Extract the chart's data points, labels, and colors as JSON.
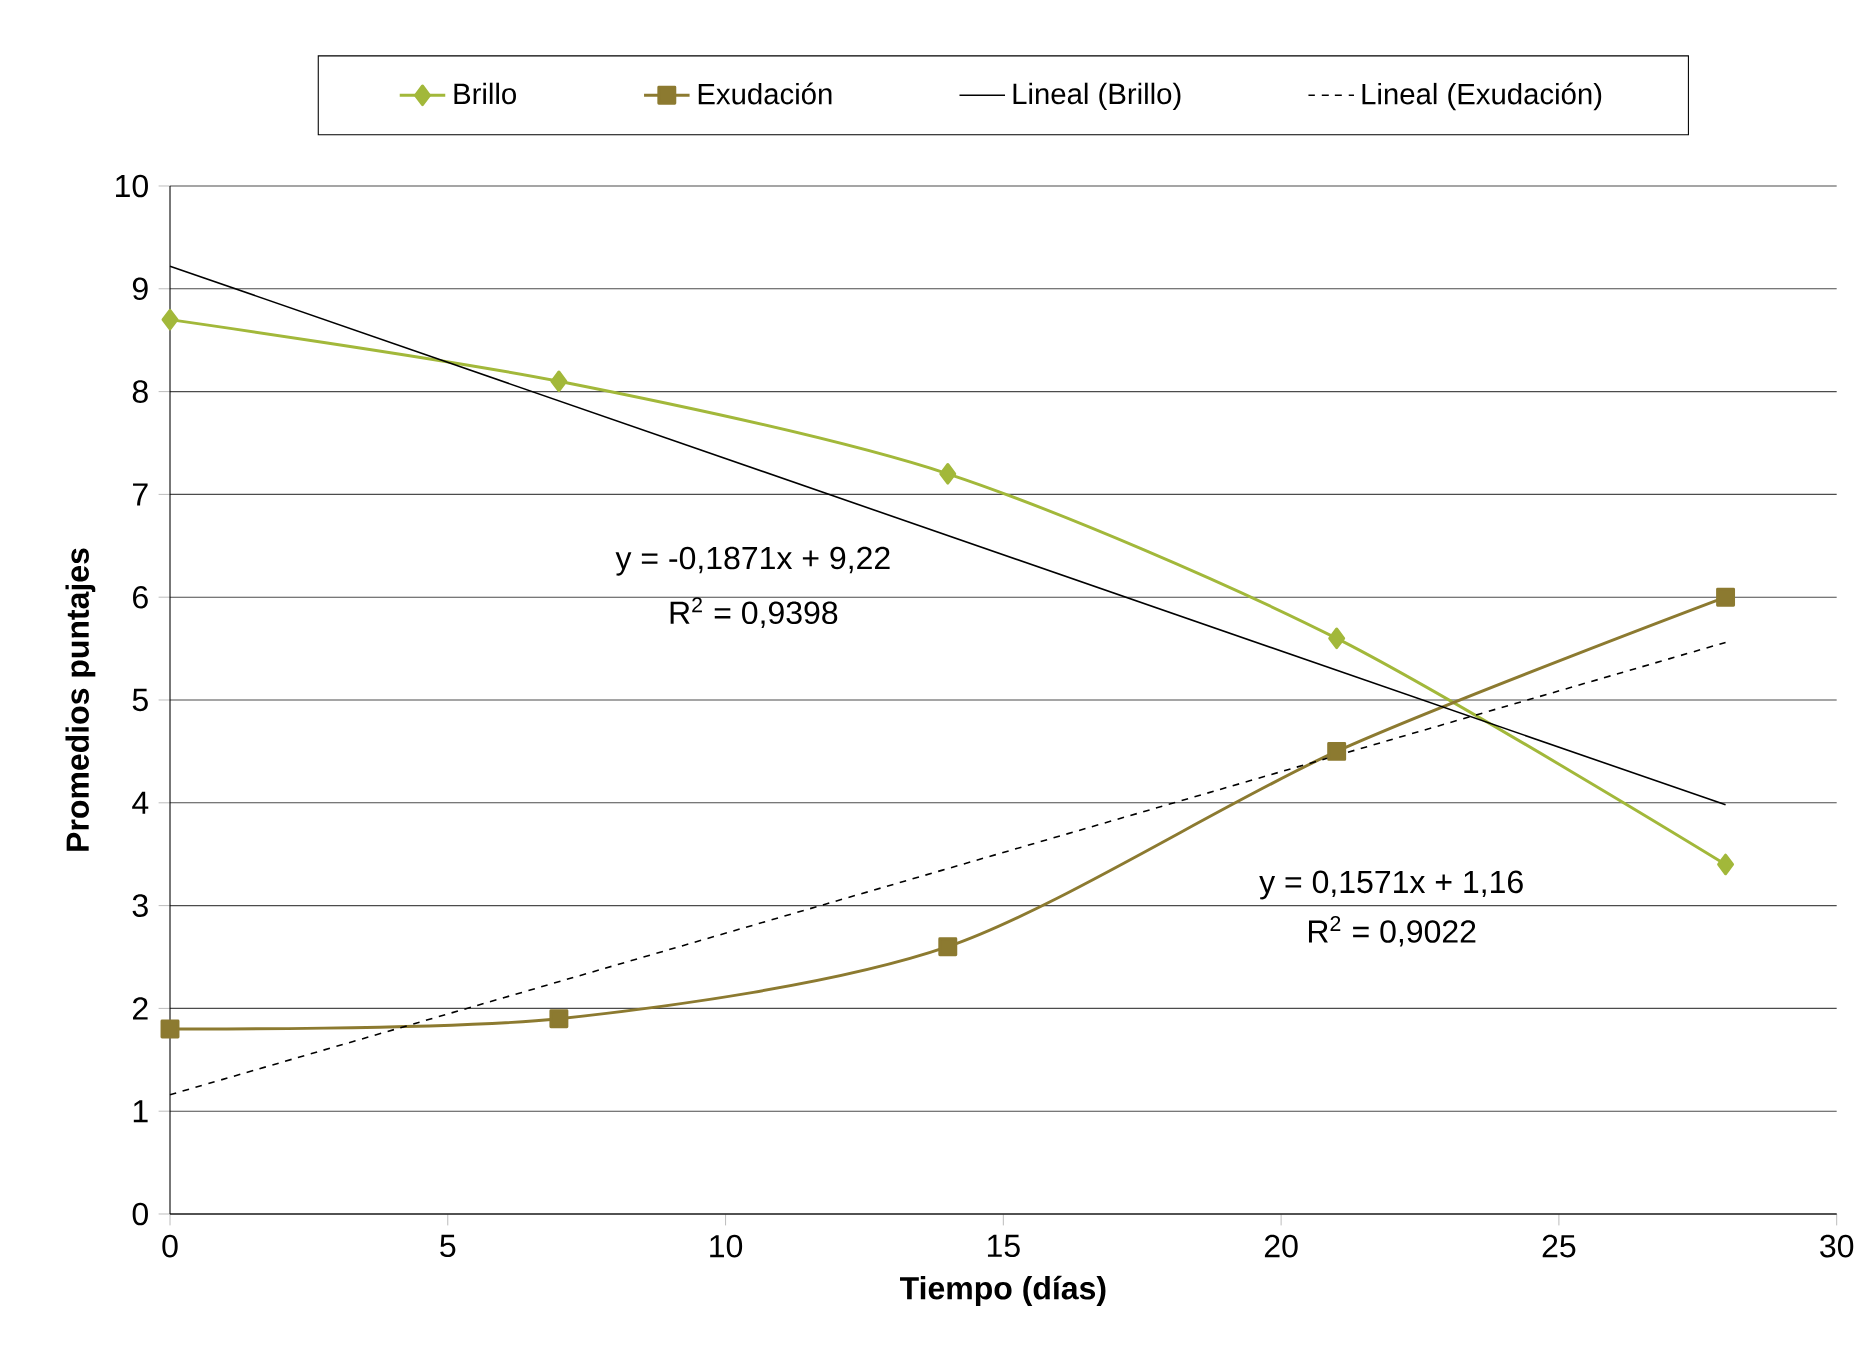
{
  "chart_data": {
    "type": "line",
    "xlabel": "Tiempo (días)",
    "ylabel": "Promedios puntajes",
    "xlim": [
      0,
      30
    ],
    "ylim": [
      0,
      10
    ],
    "xticks": [
      0,
      5,
      10,
      15,
      20,
      25,
      30
    ],
    "yticks": [
      0,
      1,
      2,
      3,
      4,
      5,
      6,
      7,
      8,
      9,
      10
    ],
    "grid": "y",
    "legend": "top",
    "series": [
      {
        "name": "Brillo",
        "color": "#a2b83a",
        "marker": "diamond",
        "line_style": "solid",
        "x": [
          0,
          7,
          14,
          21,
          28
        ],
        "values": [
          8.7,
          8.1,
          7.2,
          5.6,
          3.4
        ]
      },
      {
        "name": "Exudación",
        "color": "#8c7a30",
        "marker": "square",
        "line_style": "solid",
        "x": [
          0,
          7,
          14,
          21,
          28
        ],
        "values": [
          1.8,
          1.9,
          2.6,
          4.5,
          6.0
        ]
      },
      {
        "name": "Lineal (Brillo)",
        "color": "#000000",
        "marker": "none",
        "line_style": "solid",
        "x": [
          0,
          28
        ],
        "values": [
          9.22,
          3.98
        ]
      },
      {
        "name": "Lineal (Exudación)",
        "color": "#000000",
        "marker": "none",
        "line_style": "dashed",
        "x": [
          0,
          28
        ],
        "values": [
          1.16,
          5.56
        ]
      }
    ],
    "annotations": [
      "y = -0,1871x + 9,22",
      "R$^{2}$ = 0,9398",
      "y = 0,1571x + 1,16",
      "R$^{2}$ = 0,9022"
    ]
  }
}
